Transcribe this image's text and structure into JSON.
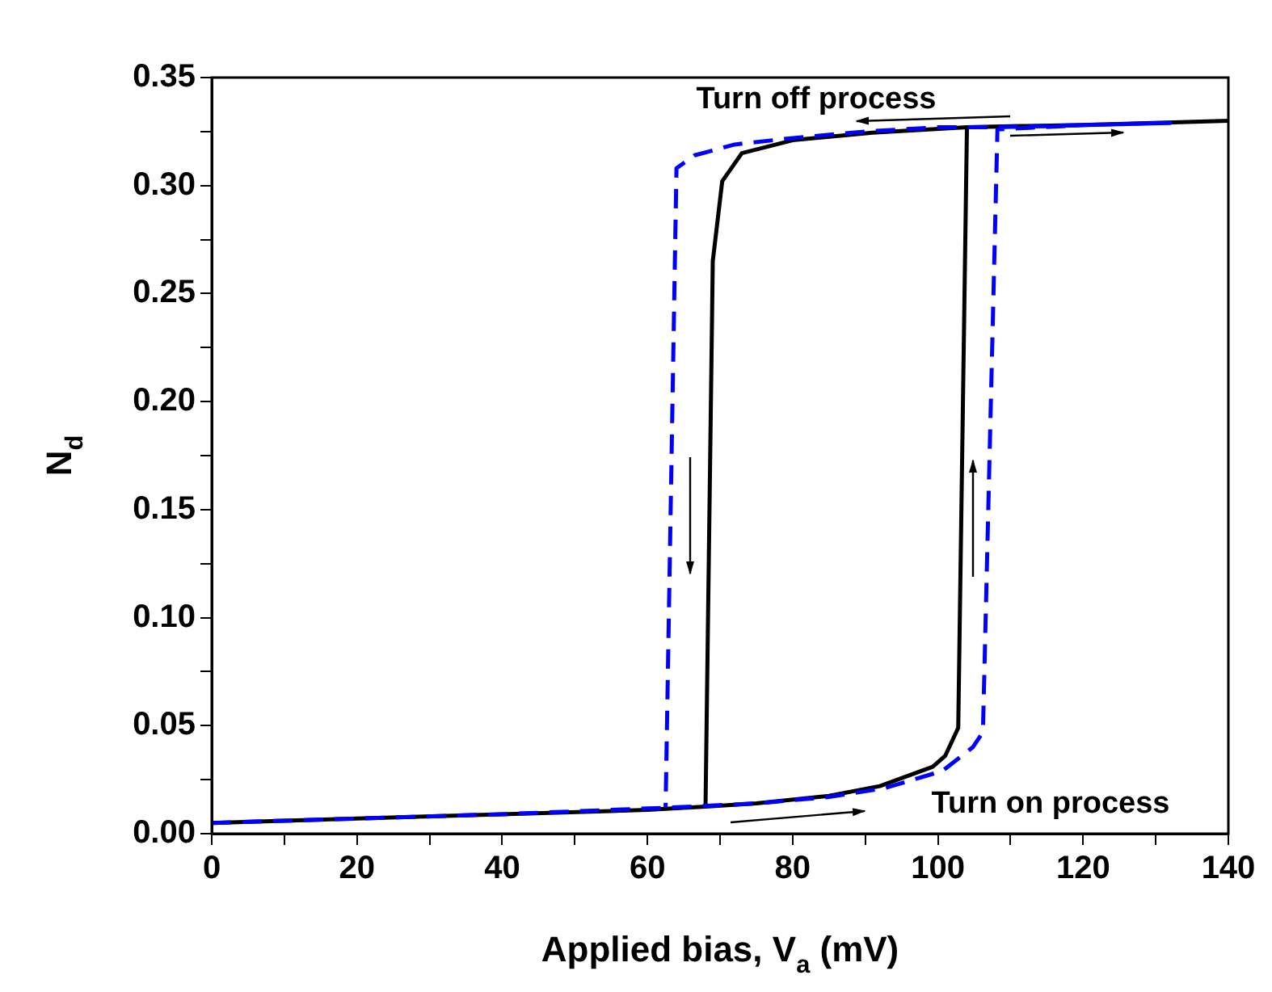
{
  "chart_data": {
    "type": "line",
    "xlabel": "Applied bias, V$_{a}$ (mV)",
    "ylabel": "N$_{d}$",
    "xlim": [
      0,
      140
    ],
    "ylim": [
      0,
      0.35
    ],
    "xticks": [
      0,
      {
        "value": 10,
        "label": null
      },
      20,
      {
        "value": 30,
        "label": null
      },
      40,
      {
        "value": 50,
        "label": null
      },
      60,
      {
        "value": 70,
        "label": null
      },
      80,
      {
        "value": 90,
        "label": null
      },
      100,
      {
        "value": 110,
        "label": null
      },
      120,
      {
        "value": 130,
        "label": null
      },
      140
    ],
    "yticks": [
      {
        "value": 0,
        "label": "0.00"
      },
      {
        "value": 0.025,
        "label": null
      },
      {
        "value": 0.05,
        "label": "0.05"
      },
      {
        "value": 0.075,
        "label": null
      },
      {
        "value": 0.1,
        "label": "0.10"
      },
      {
        "value": 0.125,
        "label": null
      },
      {
        "value": 0.15,
        "label": "0.15"
      },
      {
        "value": 0.175,
        "label": null
      },
      {
        "value": 0.2,
        "label": "0.20"
      },
      {
        "value": 0.225,
        "label": null
      },
      {
        "value": 0.25,
        "label": "0.25"
      },
      {
        "value": 0.275,
        "label": null
      },
      {
        "value": 0.3,
        "label": "0.30"
      },
      {
        "value": 0.325,
        "label": null
      },
      {
        "value": 0.35,
        "label": "0.35"
      }
    ],
    "grid": false,
    "legend": false,
    "marker": "none",
    "series": [
      {
        "color": "#0000ff",
        "line_style": "dashed",
        "x": [
          0,
          20,
          40,
          62.5,
          75,
          85,
          92.6,
          100.6,
          104.8,
          106.2,
          108.2,
          120,
          132,
          120,
          108.2,
          100,
          90,
          80,
          72,
          66.5,
          64,
          62.5
        ],
        "values": [
          0.005,
          0.007,
          0.009,
          0.012,
          0.014,
          0.017,
          0.021,
          0.029,
          0.04,
          0.047,
          0.326,
          0.328,
          0.329,
          0.328,
          0.327,
          0.327,
          0.325,
          0.322,
          0.319,
          0.314,
          0.308,
          0.012
        ]
      },
      {
        "color": "#000000",
        "line_style": "solid",
        "x": [
          0,
          20,
          40,
          60,
          68,
          75,
          85,
          92,
          99.3,
          101,
          102.8,
          104,
          110,
          120,
          140,
          120,
          104,
          91,
          80,
          73,
          70.3,
          69,
          68
        ],
        "values": [
          0.005,
          0.007,
          0.009,
          0.011,
          0.0125,
          0.014,
          0.0175,
          0.022,
          0.031,
          0.036,
          0.049,
          0.327,
          0.3275,
          0.328,
          0.33,
          0.328,
          0.327,
          0.3245,
          0.321,
          0.315,
          0.302,
          0.265,
          0.0125
        ]
      }
    ],
    "annotations": [
      "Turn off process",
      "Turn on process"
    ]
  }
}
